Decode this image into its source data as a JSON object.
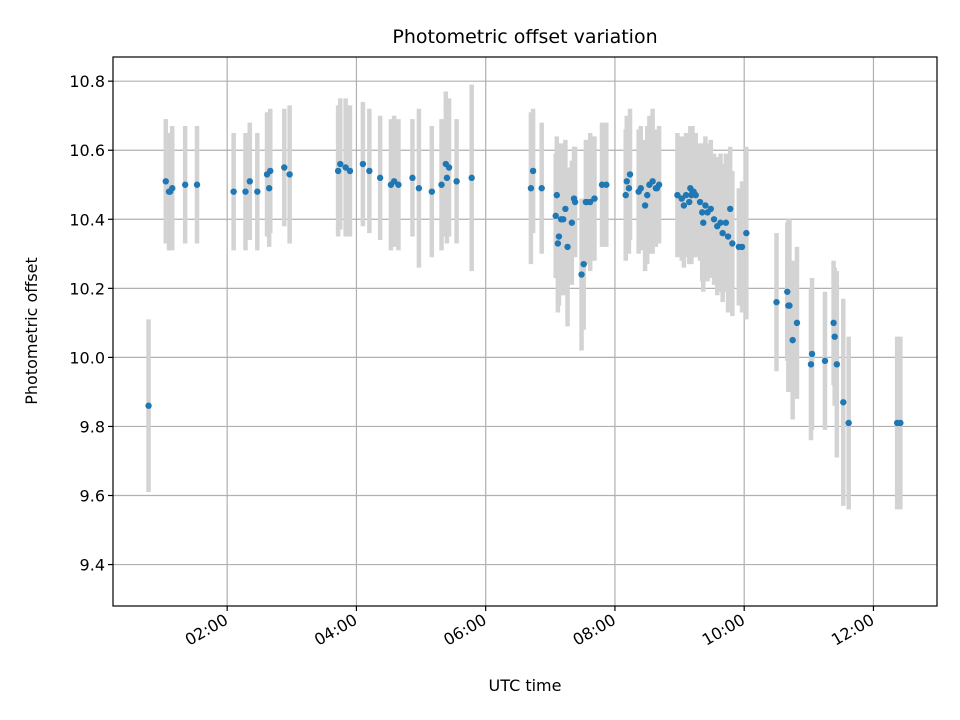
{
  "chart_data": {
    "type": "scatter",
    "title": "Photometric offset variation",
    "xlabel": "UTC time",
    "ylabel": "Photometric offset",
    "x_ticks": [
      "02:00",
      "04:00",
      "06:00",
      "08:00",
      "10:00",
      "12:00"
    ],
    "x_tick_hours": [
      2,
      4,
      6,
      8,
      10,
      12
    ],
    "y_ticks": [
      "9.4",
      "9.6",
      "9.8",
      "10.0",
      "10.2",
      "10.4",
      "10.6",
      "10.8"
    ],
    "xlim": [
      "00:14",
      "12:59"
    ],
    "ylim": [
      9.28,
      10.87
    ],
    "grid": true,
    "colors": {
      "points": "#1f77b4",
      "errorbars": "#d3d3d3",
      "grid": "#b0b0b0"
    },
    "series": [
      {
        "x": [
          "00:47",
          "01:03",
          "01:06",
          "01:07",
          "01:09",
          "01:21",
          "01:32",
          "02:06",
          "02:17",
          "02:21",
          "02:28",
          "02:37",
          "02:39",
          "02:40",
          "02:53",
          "02:58",
          "03:43",
          "03:45",
          "03:50",
          "03:54",
          "04:06",
          "04:12",
          "04:22",
          "04:32",
          "04:35",
          "04:39",
          "04:52",
          "04:58",
          "05:10",
          "05:19",
          "05:23",
          "05:24",
          "05:26",
          "05:33",
          "05:47",
          "06:42",
          "06:44",
          "06:52",
          "07:05",
          "07:06",
          "07:07",
          "07:08",
          "07:10",
          "07:12",
          "07:14",
          "07:16",
          "07:20",
          "07:22",
          "07:23",
          "07:29",
          "07:31",
          "07:33",
          "07:34",
          "07:37",
          "07:41",
          "07:48",
          "07:52",
          "08:10",
          "08:11",
          "08:13",
          "08:14",
          "08:22",
          "08:24",
          "08:28",
          "08:30",
          "08:32",
          "08:35",
          "08:38",
          "08:39",
          "08:41",
          "08:58",
          "09:02",
          "09:04",
          "09:06",
          "09:09",
          "09:10",
          "09:11",
          "09:12",
          "09:13",
          "09:15",
          "09:19",
          "09:21",
          "09:22",
          "09:24",
          "09:26",
          "09:29",
          "09:32",
          "09:35",
          "09:38",
          "09:40",
          "09:43",
          "09:45",
          "09:47",
          "09:49",
          "09:55",
          "09:58",
          "10:02",
          "10:30",
          "10:40",
          "10:41",
          "10:42",
          "10:45",
          "10:49",
          "11:02",
          "11:03",
          "11:15",
          "11:23",
          "11:24",
          "11:26",
          "11:32",
          "11:37",
          "12:22",
          "12:25"
        ],
        "y": [
          9.86,
          10.51,
          10.48,
          10.48,
          10.49,
          10.5,
          10.5,
          10.48,
          10.48,
          10.51,
          10.48,
          10.53,
          10.49,
          10.54,
          10.55,
          10.53,
          10.54,
          10.56,
          10.55,
          10.54,
          10.56,
          10.54,
          10.52,
          10.5,
          10.51,
          10.5,
          10.52,
          10.49,
          10.48,
          10.5,
          10.56,
          10.52,
          10.55,
          10.51,
          10.52,
          10.49,
          10.54,
          10.49,
          10.41,
          10.47,
          10.33,
          10.35,
          10.4,
          10.4,
          10.43,
          10.32,
          10.39,
          10.46,
          10.45,
          10.24,
          10.27,
          10.45,
          10.45,
          10.45,
          10.46,
          10.5,
          10.5,
          10.47,
          10.51,
          10.49,
          10.53,
          10.48,
          10.49,
          10.44,
          10.47,
          10.5,
          10.51,
          10.49,
          10.49,
          10.5,
          10.47,
          10.46,
          10.44,
          10.47,
          10.45,
          10.49,
          10.47,
          10.48,
          10.48,
          10.47,
          10.45,
          10.42,
          10.39,
          10.44,
          10.42,
          10.43,
          10.4,
          10.38,
          10.39,
          10.36,
          10.39,
          10.35,
          10.43,
          10.33,
          10.32,
          10.32,
          10.36,
          10.16,
          10.19,
          10.15,
          10.15,
          10.05,
          10.1,
          9.98,
          10.01,
          9.99,
          10.1,
          10.06,
          9.98,
          9.87,
          9.81,
          9.81,
          9.81
        ],
        "error": [
          0.25,
          0.18,
          0.17,
          0.17,
          0.18,
          0.17,
          0.17,
          0.17,
          0.17,
          0.17,
          0.17,
          0.18,
          0.17,
          0.18,
          0.17,
          0.2,
          0.19,
          0.19,
          0.2,
          0.19,
          0.18,
          0.18,
          0.18,
          0.19,
          0.19,
          0.19,
          0.17,
          0.23,
          0.19,
          0.19,
          0.21,
          0.19,
          0.2,
          0.18,
          0.27,
          0.22,
          0.18,
          0.19,
          0.18,
          0.17,
          0.2,
          0.2,
          0.22,
          0.22,
          0.2,
          0.23,
          0.18,
          0.15,
          0.16,
          0.22,
          0.19,
          0.18,
          0.17,
          0.2,
          0.18,
          0.18,
          0.18,
          0.19,
          0.19,
          0.19,
          0.19,
          0.18,
          0.18,
          0.19,
          0.2,
          0.2,
          0.21,
          0.17,
          0.16,
          0.17,
          0.18,
          0.18,
          0.18,
          0.18,
          0.18,
          0.18,
          0.2,
          0.19,
          0.17,
          0.18,
          0.17,
          0.2,
          0.2,
          0.2,
          0.2,
          0.2,
          0.19,
          0.2,
          0.2,
          0.2,
          0.2,
          0.22,
          0.18,
          0.21,
          0.17,
          0.19,
          0.25,
          0.2,
          0.2,
          0.25,
          0.25,
          0.23,
          0.22,
          0.22,
          0.22,
          0.2,
          0.18,
          0.2,
          0.27,
          0.3,
          0.25,
          0.25,
          0.25
        ]
      }
    ]
  }
}
